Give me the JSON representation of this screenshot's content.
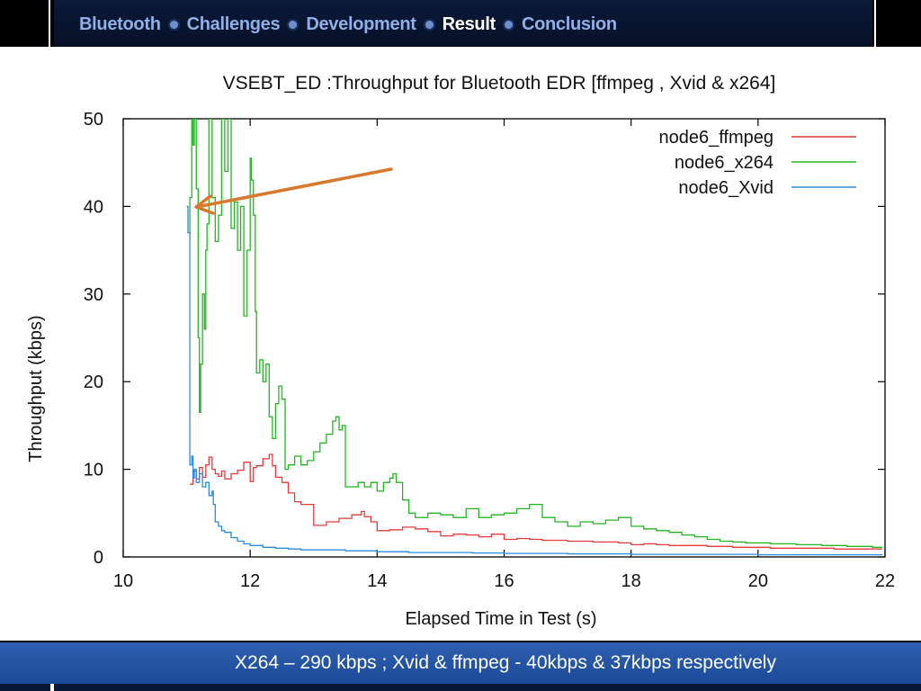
{
  "nav": {
    "items": [
      {
        "label": "Bluetooth",
        "active": false
      },
      {
        "label": "Challenges",
        "active": false
      },
      {
        "label": "Development",
        "active": false
      },
      {
        "label": "Result",
        "active": true
      },
      {
        "label": "Conclusion",
        "active": false
      }
    ]
  },
  "caption": "X264 – 290 kbps  ; Xvid & ffmpeg  -  40kbps & 37kbps respectively",
  "colors": {
    "ffmpeg": "#e83a3a",
    "x264": "#22b622",
    "xvid": "#2a8ae0",
    "arrow": "#d9772a",
    "nav_active": "#ffffff",
    "nav_inactive": "#8fb0e8",
    "caption_bar": "#2a5aab"
  },
  "chart_data": {
    "type": "line",
    "title": "VSEBT_ED :Throughput for Bluetooth EDR [ffmpeg , Xvid & x264]",
    "xlabel": "Elapsed Time in Test (s)",
    "ylabel": "Throughput (kbps)",
    "xlim": [
      10,
      22
    ],
    "ylim": [
      0,
      50
    ],
    "xticks": [
      10,
      12,
      14,
      16,
      18,
      20,
      22
    ],
    "yticks": [
      0,
      10,
      20,
      30,
      40,
      50
    ],
    "grid": false,
    "legend_position": "top-right",
    "series": [
      {
        "name": "node6_ffmpeg",
        "color": "#e83a3a",
        "x": [
          11.05,
          11.1,
          11.15,
          11.2,
          11.25,
          11.3,
          11.35,
          11.4,
          11.45,
          11.5,
          11.55,
          11.6,
          11.7,
          11.8,
          11.9,
          12.0,
          12.05,
          12.1,
          12.2,
          12.3,
          12.35,
          12.4,
          12.5,
          12.6,
          12.7,
          12.8,
          12.9,
          13.0,
          13.2,
          13.4,
          13.6,
          13.75,
          13.8,
          13.9,
          14.0,
          14.1,
          14.2,
          14.4,
          14.6,
          14.8,
          15.0,
          15.2,
          15.4,
          15.6,
          15.8,
          16.0,
          16.2,
          16.4,
          16.6,
          16.8,
          17.0,
          17.2,
          17.4,
          17.6,
          17.8,
          18.0,
          18.2,
          18.4,
          18.6,
          18.8,
          19.0,
          19.2,
          19.4,
          19.6,
          19.8,
          20.0,
          20.2,
          20.4,
          20.6,
          20.8,
          21.0,
          21.2,
          21.4,
          21.6,
          21.8,
          21.95
        ],
        "y": [
          8.3,
          9.8,
          8.9,
          10.2,
          9.1,
          10.5,
          11.4,
          10.0,
          9.5,
          9.2,
          9.8,
          8.9,
          9.5,
          9.9,
          10.8,
          8.6,
          10.2,
          10.4,
          11.2,
          11.7,
          10.4,
          9.1,
          8.5,
          7.3,
          6.3,
          6.0,
          6.0,
          3.6,
          4.0,
          4.4,
          4.8,
          5.2,
          4.6,
          4.0,
          3.0,
          3.0,
          3.1,
          3.4,
          3.2,
          2.9,
          2.4,
          2.6,
          2.5,
          2.3,
          2.6,
          2.0,
          2.1,
          2.0,
          1.9,
          1.9,
          1.8,
          1.8,
          1.7,
          1.7,
          1.6,
          1.4,
          1.5,
          1.4,
          1.3,
          1.3,
          1.3,
          1.2,
          1.2,
          1.1,
          1.1,
          1.1,
          1.0,
          1.0,
          1.0,
          1.0,
          1.0,
          0.9,
          0.9,
          0.9,
          0.9,
          0.9
        ]
      },
      {
        "name": "node6_x264",
        "color": "#22b622",
        "x": [
          11.03,
          11.05,
          11.08,
          11.1,
          11.12,
          11.15,
          11.18,
          11.2,
          11.22,
          11.25,
          11.28,
          11.3,
          11.32,
          11.35,
          11.4,
          11.45,
          11.5,
          11.55,
          11.6,
          11.65,
          11.7,
          11.75,
          11.8,
          11.85,
          11.9,
          11.95,
          12.0,
          12.02,
          12.05,
          12.08,
          12.1,
          12.15,
          12.2,
          12.25,
          12.3,
          12.35,
          12.4,
          12.45,
          12.5,
          12.55,
          12.6,
          12.7,
          12.8,
          12.9,
          13.0,
          13.1,
          13.2,
          13.3,
          13.35,
          13.4,
          13.45,
          13.5,
          13.6,
          13.7,
          13.8,
          13.9,
          14.0,
          14.1,
          14.2,
          14.25,
          14.3,
          14.4,
          14.5,
          14.6,
          14.8,
          15.0,
          15.2,
          15.4,
          15.6,
          15.8,
          16.0,
          16.2,
          16.4,
          16.6,
          16.8,
          17.0,
          17.2,
          17.4,
          17.6,
          17.8,
          18.0,
          18.2,
          18.4,
          18.6,
          18.8,
          19.0,
          19.2,
          19.4,
          19.6,
          19.8,
          20.0,
          20.2,
          20.4,
          20.6,
          20.8,
          21.0,
          21.2,
          21.4,
          21.6,
          21.8,
          21.95
        ],
        "y": [
          37.0,
          41.0,
          50.0,
          47.0,
          50.0,
          42.0,
          25.0,
          16.5,
          22.0,
          30.0,
          26.0,
          35.0,
          38.0,
          50.0,
          41.0,
          36.0,
          39.0,
          50.0,
          44.0,
          50.0,
          37.5,
          40.5,
          35.0,
          40.0,
          27.5,
          35.0,
          45.5,
          43.0,
          39.0,
          28.0,
          21.0,
          22.5,
          20.0,
          22.0,
          16.0,
          13.5,
          17.5,
          19.5,
          18.0,
          10.0,
          10.5,
          11.5,
          10.5,
          11.0,
          12.0,
          13.0,
          14.0,
          15.5,
          16.0,
          14.5,
          15.0,
          8.0,
          8.0,
          8.5,
          8.0,
          8.5,
          7.5,
          8.5,
          9.0,
          9.5,
          8.5,
          6.5,
          5.0,
          4.5,
          5.0,
          4.8,
          4.5,
          5.5,
          4.5,
          4.8,
          5.0,
          5.5,
          6.0,
          4.5,
          4.0,
          3.5,
          4.0,
          3.8,
          4.2,
          4.5,
          3.5,
          3.2,
          3.0,
          2.8,
          2.5,
          2.3,
          2.0,
          1.8,
          1.7,
          1.6,
          1.6,
          1.5,
          1.5,
          1.4,
          1.4,
          1.3,
          1.3,
          1.2,
          1.2,
          1.1,
          1.0
        ]
      },
      {
        "name": "node6_Xvid",
        "color": "#2a8ae0",
        "x": [
          11.0,
          11.02,
          11.05,
          11.08,
          11.1,
          11.12,
          11.15,
          11.2,
          11.25,
          11.3,
          11.35,
          11.4,
          11.42,
          11.45,
          11.5,
          11.55,
          11.6,
          11.7,
          11.8,
          11.9,
          12.0,
          12.2,
          12.4,
          12.6,
          12.8,
          13.0,
          13.5,
          14.0,
          14.5,
          15.0,
          15.5,
          16.0,
          17.0,
          18.0,
          19.0,
          20.0,
          21.0,
          21.95
        ],
        "y": [
          40.0,
          37.0,
          10.5,
          11.5,
          9.0,
          10.0,
          8.5,
          9.5,
          8.0,
          8.5,
          7.0,
          7.5,
          6.0,
          4.0,
          3.5,
          3.0,
          2.8,
          2.2,
          1.8,
          1.5,
          1.3,
          1.1,
          1.0,
          0.9,
          0.8,
          0.8,
          0.7,
          0.6,
          0.5,
          0.5,
          0.45,
          0.4,
          0.35,
          0.3,
          0.3,
          0.25,
          0.25,
          0.2
        ]
      }
    ]
  }
}
